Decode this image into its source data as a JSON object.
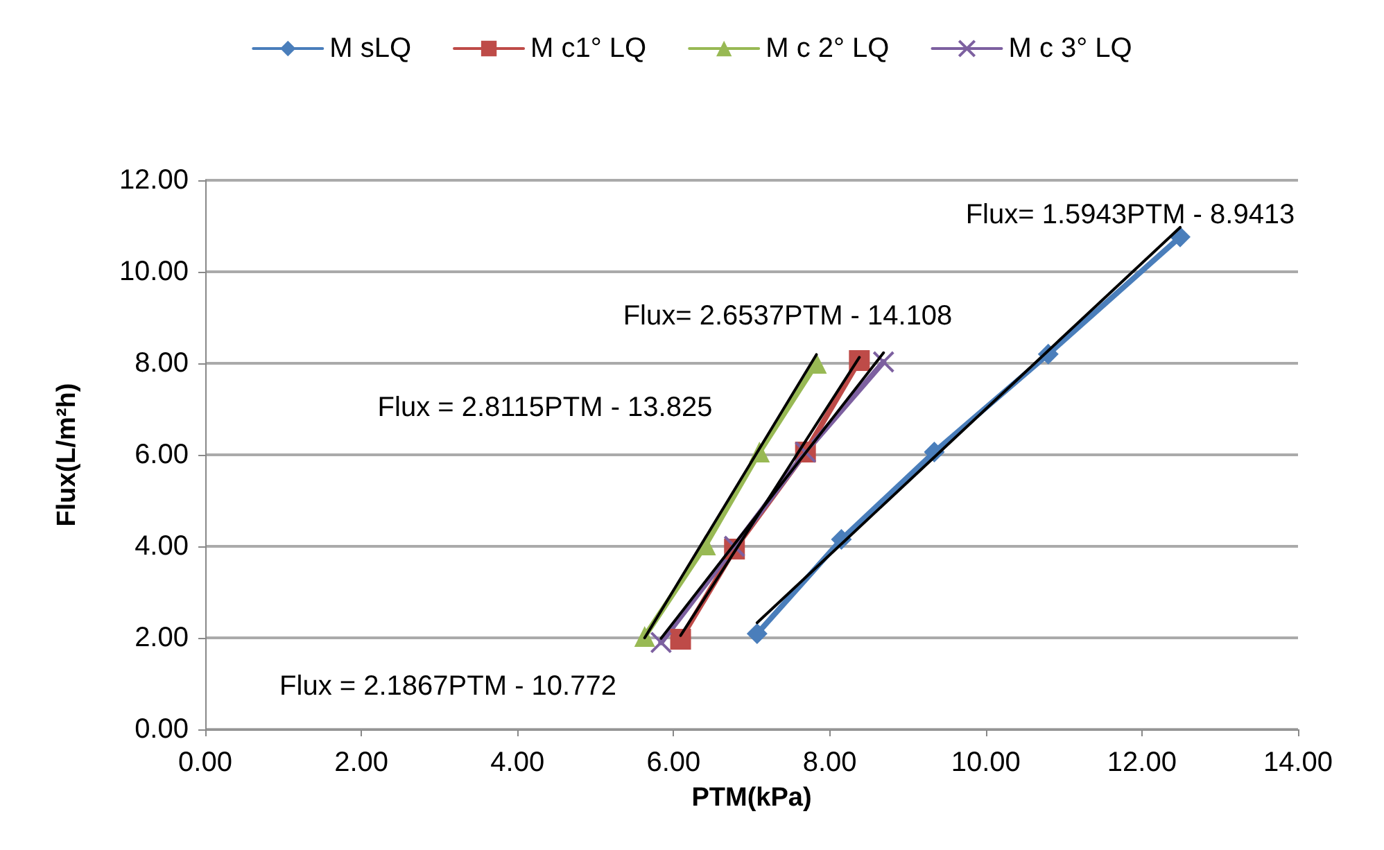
{
  "chart_data": {
    "type": "line",
    "xlabel": "PTM(kPa)",
    "ylabel": "Flux(L/m²h)",
    "legend": "top",
    "grid": "y",
    "xlim": [
      0,
      14
    ],
    "xticks": [
      {
        "value": 0,
        "label": "0.00"
      },
      {
        "value": 2,
        "label": "2.00"
      },
      {
        "value": 4,
        "label": "4.00"
      },
      {
        "value": 6,
        "label": "6.00"
      },
      {
        "value": 8,
        "label": "8.00"
      },
      {
        "value": 10,
        "label": "10.00"
      },
      {
        "value": 12,
        "label": "12.00"
      },
      {
        "value": 14,
        "label": "14.00"
      }
    ],
    "ylim": [
      0,
      12
    ],
    "yticks": [
      {
        "value": 0,
        "label": "0.00"
      },
      {
        "value": 2,
        "label": "2.00"
      },
      {
        "value": 4,
        "label": "4.00"
      },
      {
        "value": 6,
        "label": "6.00"
      },
      {
        "value": 8,
        "label": "8.00"
      },
      {
        "value": 10,
        "label": "10.00"
      },
      {
        "value": 12,
        "label": "12.00"
      }
    ],
    "series": [
      {
        "name": "M sLQ",
        "color": "#4a7ebb",
        "marker": "diamond",
        "x": [
          7.07,
          8.15,
          9.34,
          10.8,
          12.49
        ],
        "values": [
          2.09,
          4.15,
          6.06,
          8.2,
          10.76
        ]
      },
      {
        "name": "M c1° LQ",
        "color": "#be4b48",
        "marker": "square",
        "x": [
          6.09,
          6.78,
          7.69,
          8.38
        ],
        "values": [
          1.97,
          3.94,
          6.06,
          8.06
        ]
      },
      {
        "name": "M c 2° LQ",
        "color": "#98b954",
        "marker": "triangle",
        "x": [
          5.63,
          6.41,
          7.1,
          7.83
        ],
        "values": [
          2.03,
          4.03,
          6.06,
          8.0
        ]
      },
      {
        "name": "M c 3° LQ",
        "color": "#7d60a0",
        "marker": "cross",
        "x": [
          5.84,
          6.78,
          7.69,
          8.69
        ],
        "values": [
          1.9,
          4.0,
          6.06,
          8.03
        ]
      },
      {
        "color": "#000000",
        "marker": "none",
        "x": [
          7.07,
          12.49
        ],
        "values": [
          2.33,
          10.97
        ]
      },
      {
        "color": "#000000",
        "marker": "none",
        "x": [
          6.09,
          8.38
        ],
        "values": [
          2.05,
          8.13
        ]
      },
      {
        "color": "#000000",
        "marker": "none",
        "x": [
          5.63,
          7.83
        ],
        "values": [
          2.0,
          8.19
        ]
      },
      {
        "color": "#000000",
        "marker": "none",
        "x": [
          5.84,
          8.69
        ],
        "values": [
          1.99,
          8.23
        ]
      }
    ],
    "annotations": [
      "Flux= 1.5943PTM - 8.9413",
      "Flux= 2.6537PTM - 14.108",
      "Flux = 2.8115PTM - 13.825",
      "Flux = 2.1867PTM - 10.772"
    ]
  }
}
